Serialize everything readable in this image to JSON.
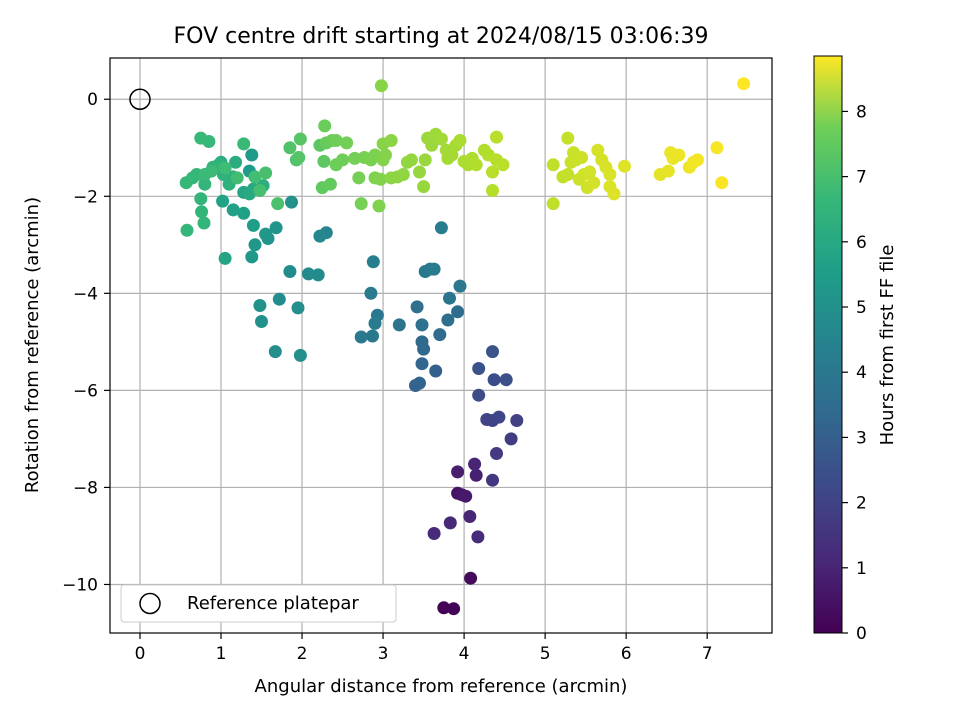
{
  "chart_data": {
    "type": "scatter",
    "title": "FOV centre drift starting at 2024/08/15 03:06:39",
    "xlabel": "Angular distance from reference (arcmin)",
    "ylabel": "Rotation from reference (arcmin)",
    "xlim": [
      -0.37,
      7.8
    ],
    "ylim": [
      -11.0,
      0.85
    ],
    "xticks": [
      "0",
      "1",
      "2",
      "3",
      "4",
      "5",
      "6",
      "7"
    ],
    "yticks": [
      "0",
      "−2",
      "−4",
      "−6",
      "−8",
      "−10"
    ],
    "grid": true,
    "legend": {
      "placement": "bottom-left",
      "entries": [
        "Reference platepar"
      ]
    },
    "reference_point": {
      "x": 0,
      "y": 0
    },
    "colorbar": {
      "label": "Hours from first FF file",
      "min": 0,
      "max": 8.85,
      "ticks": [
        "0",
        "1",
        "2",
        "3",
        "4",
        "5",
        "6",
        "7",
        "8"
      ],
      "colormap": "viridis"
    },
    "points": [
      [
        3.75,
        -10.48,
        0.05
      ],
      [
        3.87,
        -10.5,
        0.1
      ],
      [
        4.08,
        -9.87,
        0.25
      ],
      [
        3.92,
        -8.12,
        0.45
      ],
      [
        3.97,
        -8.15,
        0.55
      ],
      [
        4.02,
        -8.18,
        0.6
      ],
      [
        3.92,
        -7.68,
        0.7
      ],
      [
        4.15,
        -7.75,
        0.8
      ],
      [
        4.13,
        -7.52,
        0.9
      ],
      [
        4.07,
        -8.6,
        0.95
      ],
      [
        3.83,
        -8.73,
        1.0
      ],
      [
        3.63,
        -8.95,
        1.05
      ],
      [
        4.17,
        -9.02,
        1.1
      ],
      [
        4.35,
        -7.85,
        1.4
      ],
      [
        4.4,
        -7.3,
        1.5
      ],
      [
        4.58,
        -7.0,
        1.6
      ],
      [
        4.65,
        -6.62,
        1.7
      ],
      [
        4.28,
        -6.6,
        1.75
      ],
      [
        4.35,
        -6.62,
        1.8
      ],
      [
        4.43,
        -6.55,
        1.85
      ],
      [
        4.18,
        -6.1,
        2.0
      ],
      [
        4.37,
        -5.78,
        2.1
      ],
      [
        4.52,
        -5.78,
        2.15
      ],
      [
        4.18,
        -5.55,
        2.2
      ],
      [
        4.35,
        -5.2,
        2.3
      ],
      [
        3.65,
        -5.6,
        2.7
      ],
      [
        3.4,
        -5.9,
        2.8
      ],
      [
        3.45,
        -5.85,
        2.85
      ],
      [
        3.48,
        -5.45,
        2.9
      ],
      [
        3.5,
        -5.15,
        3.0
      ],
      [
        3.48,
        -5.0,
        3.05
      ],
      [
        3.7,
        -4.85,
        3.1
      ],
      [
        3.92,
        -4.38,
        3.15
      ],
      [
        3.8,
        -4.55,
        3.2
      ],
      [
        3.42,
        -4.28,
        3.25
      ],
      [
        3.48,
        -4.65,
        3.3
      ],
      [
        3.2,
        -4.65,
        3.4
      ],
      [
        3.82,
        -4.1,
        3.45
      ],
      [
        3.95,
        -3.85,
        3.5
      ],
      [
        3.52,
        -3.55,
        3.55
      ],
      [
        3.58,
        -3.5,
        3.6
      ],
      [
        3.63,
        -3.5,
        3.65
      ],
      [
        3.72,
        -2.65,
        3.7
      ],
      [
        2.93,
        -4.45,
        3.5
      ],
      [
        2.87,
        -4.88,
        3.55
      ],
      [
        2.73,
        -4.9,
        3.6
      ],
      [
        2.9,
        -4.62,
        3.65
      ],
      [
        2.85,
        -4.0,
        3.7
      ],
      [
        2.88,
        -3.35,
        3.8
      ],
      [
        2.3,
        -2.75,
        4.0
      ],
      [
        2.22,
        -2.82,
        4.1
      ],
      [
        2.08,
        -3.6,
        4.2
      ],
      [
        2.2,
        -3.62,
        4.25
      ],
      [
        1.85,
        -3.55,
        4.3
      ],
      [
        1.72,
        -4.12,
        4.3
      ],
      [
        1.95,
        -4.3,
        4.35
      ],
      [
        1.67,
        -5.2,
        4.35
      ],
      [
        1.98,
        -5.28,
        4.4
      ],
      [
        1.5,
        -4.58,
        4.45
      ],
      [
        1.48,
        -4.25,
        4.5
      ],
      [
        1.87,
        -2.12,
        4.5
      ],
      [
        1.68,
        -2.65,
        4.55
      ],
      [
        1.58,
        -2.87,
        4.6
      ],
      [
        1.42,
        -3.0,
        4.65
      ],
      [
        1.55,
        -2.78,
        4.7
      ],
      [
        1.38,
        -3.25,
        4.75
      ],
      [
        1.38,
        -1.15,
        4.8
      ],
      [
        1.35,
        -1.48,
        4.85
      ],
      [
        1.4,
        -2.6,
        4.95
      ],
      [
        1.28,
        -2.35,
        5.0
      ],
      [
        1.15,
        -2.28,
        5.05
      ],
      [
        1.02,
        -2.1,
        5.1
      ],
      [
        1.05,
        -3.28,
        5.15
      ],
      [
        1.28,
        -1.92,
        5.2
      ],
      [
        1.4,
        -1.85,
        5.3
      ],
      [
        1.35,
        -1.95,
        5.35
      ],
      [
        1.18,
        -1.3,
        5.45
      ],
      [
        1.0,
        -1.3,
        5.5
      ],
      [
        1.52,
        -1.78,
        5.55
      ],
      [
        1.15,
        -1.6,
        5.6
      ],
      [
        1.1,
        -1.75,
        5.65
      ],
      [
        1.03,
        -1.55,
        5.7
      ],
      [
        0.97,
        -1.35,
        5.72
      ],
      [
        0.9,
        -1.4,
        5.75
      ],
      [
        0.8,
        -1.75,
        5.78
      ],
      [
        0.75,
        -2.05,
        5.8
      ],
      [
        0.76,
        -2.32,
        5.82
      ],
      [
        0.79,
        -2.55,
        5.84
      ],
      [
        0.58,
        -2.7,
        5.86
      ],
      [
        0.7,
        -1.55,
        5.88
      ],
      [
        0.65,
        -1.62,
        5.9
      ],
      [
        0.57,
        -1.72,
        5.92
      ],
      [
        0.85,
        -0.87,
        5.94
      ],
      [
        0.75,
        -0.8,
        5.96
      ],
      [
        1.28,
        -0.92,
        5.98
      ],
      [
        0.8,
        -1.55,
        6.0
      ],
      [
        0.88,
        -1.48,
        6.02
      ],
      [
        1.05,
        -1.42,
        6.05
      ],
      [
        1.2,
        -1.62,
        6.1
      ],
      [
        1.42,
        -1.6,
        6.15
      ],
      [
        1.48,
        -1.88,
        6.2
      ],
      [
        1.55,
        -1.52,
        6.25
      ],
      [
        1.7,
        -2.15,
        6.3
      ],
      [
        1.85,
        -1.0,
        6.35
      ],
      [
        1.93,
        -1.25,
        6.4
      ],
      [
        1.96,
        -1.2,
        6.45
      ],
      [
        1.98,
        -0.82,
        6.5
      ],
      [
        2.22,
        -0.95,
        6.55
      ],
      [
        2.27,
        -1.28,
        6.6
      ],
      [
        2.25,
        -1.82,
        6.65
      ],
      [
        2.35,
        -1.75,
        6.7
      ],
      [
        2.3,
        -0.9,
        6.75
      ],
      [
        2.37,
        -0.85,
        6.8
      ],
      [
        2.28,
        -0.55,
        6.82
      ],
      [
        2.42,
        -1.35,
        6.85
      ],
      [
        2.42,
        -0.85,
        6.88
      ],
      [
        2.5,
        -1.25,
        6.9
      ],
      [
        2.55,
        -0.9,
        6.92
      ],
      [
        2.65,
        -1.22,
        6.95
      ],
      [
        2.7,
        -1.62,
        6.97
      ],
      [
        2.73,
        -2.15,
        7.0
      ],
      [
        2.77,
        -1.2,
        7.02
      ],
      [
        2.85,
        -1.25,
        7.05
      ],
      [
        2.9,
        -1.15,
        7.08
      ],
      [
        2.9,
        -1.62,
        7.1
      ],
      [
        2.95,
        -2.2,
        7.12
      ],
      [
        2.97,
        -1.65,
        7.15
      ],
      [
        3.0,
        -1.25,
        7.18
      ],
      [
        3.03,
        -1.15,
        7.2
      ],
      [
        3.0,
        -0.92,
        7.22
      ],
      [
        2.98,
        0.28,
        7.25
      ],
      [
        3.1,
        -0.85,
        7.28
      ],
      [
        3.1,
        -1.62,
        7.3
      ],
      [
        3.18,
        -1.6,
        7.32
      ],
      [
        3.25,
        -1.55,
        7.35
      ],
      [
        3.3,
        -1.3,
        7.38
      ],
      [
        3.35,
        -1.25,
        7.4
      ],
      [
        3.45,
        -1.5,
        7.42
      ],
      [
        3.5,
        -1.8,
        7.45
      ],
      [
        3.52,
        -1.25,
        7.48
      ],
      [
        3.55,
        -0.8,
        7.5
      ],
      [
        3.6,
        -0.95,
        7.52
      ],
      [
        3.65,
        -0.72,
        7.55
      ],
      [
        3.72,
        -0.82,
        7.58
      ],
      [
        3.78,
        -1.05,
        7.6
      ],
      [
        3.8,
        -1.22,
        7.62
      ],
      [
        3.85,
        -1.15,
        7.65
      ],
      [
        3.9,
        -0.95,
        7.67
      ],
      [
        3.95,
        -0.85,
        7.7
      ],
      [
        4.0,
        -1.28,
        7.72
      ],
      [
        4.05,
        -1.35,
        7.75
      ],
      [
        4.1,
        -1.22,
        7.77
      ],
      [
        4.15,
        -1.35,
        7.8
      ],
      [
        4.25,
        -1.05,
        7.82
      ],
      [
        4.3,
        -1.15,
        7.84
      ],
      [
        4.35,
        -1.88,
        7.86
      ],
      [
        4.35,
        -1.5,
        7.88
      ],
      [
        4.4,
        -1.25,
        7.9
      ],
      [
        4.4,
        -0.78,
        7.92
      ],
      [
        4.48,
        -1.35,
        7.94
      ],
      [
        5.1,
        -2.15,
        8.0
      ],
      [
        5.1,
        -1.35,
        8.02
      ],
      [
        5.22,
        -1.6,
        8.05
      ],
      [
        5.28,
        -0.8,
        8.08
      ],
      [
        5.28,
        -1.55,
        8.1
      ],
      [
        5.32,
        -1.3,
        8.12
      ],
      [
        5.35,
        -1.1,
        8.14
      ],
      [
        5.38,
        -1.25,
        8.16
      ],
      [
        5.42,
        -1.65,
        8.18
      ],
      [
        5.45,
        -1.2,
        8.2
      ],
      [
        5.48,
        -1.55,
        8.22
      ],
      [
        5.52,
        -1.82,
        8.24
      ],
      [
        5.55,
        -1.5,
        8.26
      ],
      [
        5.6,
        -1.72,
        8.28
      ],
      [
        5.65,
        -1.05,
        8.3
      ],
      [
        5.7,
        -1.25,
        8.32
      ],
      [
        5.75,
        -1.4,
        8.34
      ],
      [
        5.8,
        -1.55,
        8.36
      ],
      [
        5.8,
        -1.8,
        8.38
      ],
      [
        5.85,
        -1.95,
        8.4
      ],
      [
        5.98,
        -1.38,
        8.42
      ],
      [
        6.42,
        -1.55,
        8.5
      ],
      [
        6.52,
        -1.48,
        8.55
      ],
      [
        6.55,
        -1.1,
        8.58
      ],
      [
        6.58,
        -1.22,
        8.6
      ],
      [
        6.65,
        -1.15,
        8.62
      ],
      [
        6.78,
        -1.4,
        8.65
      ],
      [
        6.83,
        -1.3,
        8.68
      ],
      [
        6.88,
        -1.25,
        8.7
      ],
      [
        7.12,
        -1.0,
        8.75
      ],
      [
        7.18,
        -1.72,
        8.78
      ],
      [
        7.45,
        0.32,
        8.85
      ]
    ]
  }
}
